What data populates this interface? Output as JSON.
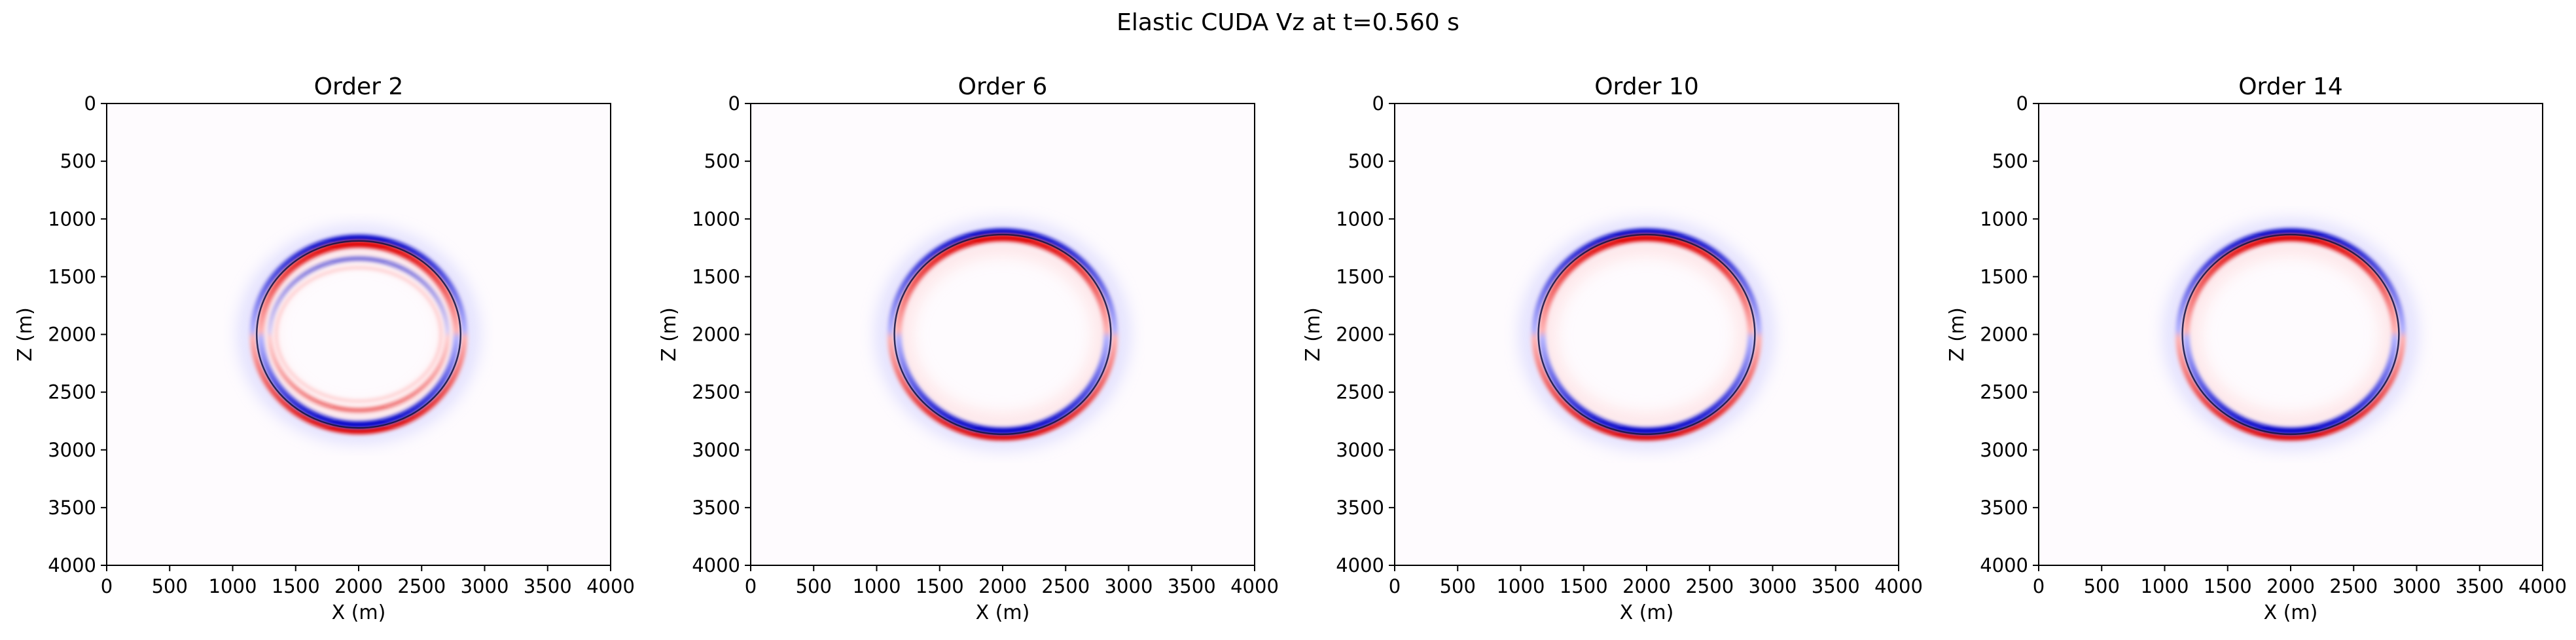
{
  "figure": {
    "suptitle": "Elastic CUDA Vz at t=0.560 s"
  },
  "colors": {
    "positive": "#e00000",
    "negative": "#0000c8",
    "background": "#fefbfe",
    "axis": "#000000"
  },
  "chart_data": [
    {
      "type": "heatmap",
      "title": "Order 2",
      "xlabel": "X (m)",
      "ylabel": "Z (m)",
      "xlim": [
        0,
        4000
      ],
      "ylim": [
        4000,
        0
      ],
      "xticks": [
        "0",
        "500",
        "1000",
        "1500",
        "2000",
        "2500",
        "3000",
        "3500",
        "4000"
      ],
      "yticks": [
        "0",
        "500",
        "1000",
        "1500",
        "2000",
        "2500",
        "3000",
        "3500",
        "4000"
      ],
      "colormap": "seismic",
      "wavefront": {
        "center_x": 2000,
        "center_z": 2000,
        "radius_x": 830,
        "radius_z": 830,
        "order_artifact": "strong"
      }
    },
    {
      "type": "heatmap",
      "title": "Order 6",
      "xlabel": "X (m)",
      "ylabel": "Z (m)",
      "xlim": [
        0,
        4000
      ],
      "ylim": [
        4000,
        0
      ],
      "xticks": [
        "0",
        "500",
        "1000",
        "1500",
        "2000",
        "2500",
        "3000",
        "3500",
        "4000"
      ],
      "yticks": [
        "0",
        "500",
        "1000",
        "1500",
        "2000",
        "2500",
        "3000",
        "3500",
        "4000"
      ],
      "colormap": "seismic",
      "wavefront": {
        "center_x": 2000,
        "center_z": 2000,
        "radius_x": 880,
        "radius_z": 880,
        "order_artifact": "none"
      }
    },
    {
      "type": "heatmap",
      "title": "Order 10",
      "xlabel": "X (m)",
      "ylabel": "Z (m)",
      "xlim": [
        0,
        4000
      ],
      "ylim": [
        4000,
        0
      ],
      "xticks": [
        "0",
        "500",
        "1000",
        "1500",
        "2000",
        "2500",
        "3000",
        "3500",
        "4000"
      ],
      "yticks": [
        "0",
        "500",
        "1000",
        "1500",
        "2000",
        "2500",
        "3000",
        "3500",
        "4000"
      ],
      "colormap": "seismic",
      "wavefront": {
        "center_x": 2000,
        "center_z": 2000,
        "radius_x": 880,
        "radius_z": 880,
        "order_artifact": "none"
      }
    },
    {
      "type": "heatmap",
      "title": "Order 14",
      "xlabel": "X (m)",
      "ylabel": "Z (m)",
      "xlim": [
        0,
        4000
      ],
      "ylim": [
        4000,
        0
      ],
      "xticks": [
        "0",
        "500",
        "1000",
        "1500",
        "2000",
        "2500",
        "3000",
        "3500",
        "4000"
      ],
      "yticks": [
        "0",
        "500",
        "1000",
        "1500",
        "2000",
        "2500",
        "3000",
        "3500",
        "4000"
      ],
      "colormap": "seismic",
      "wavefront": {
        "center_x": 2000,
        "center_z": 2000,
        "radius_x": 880,
        "radius_z": 880,
        "order_artifact": "none"
      }
    }
  ]
}
